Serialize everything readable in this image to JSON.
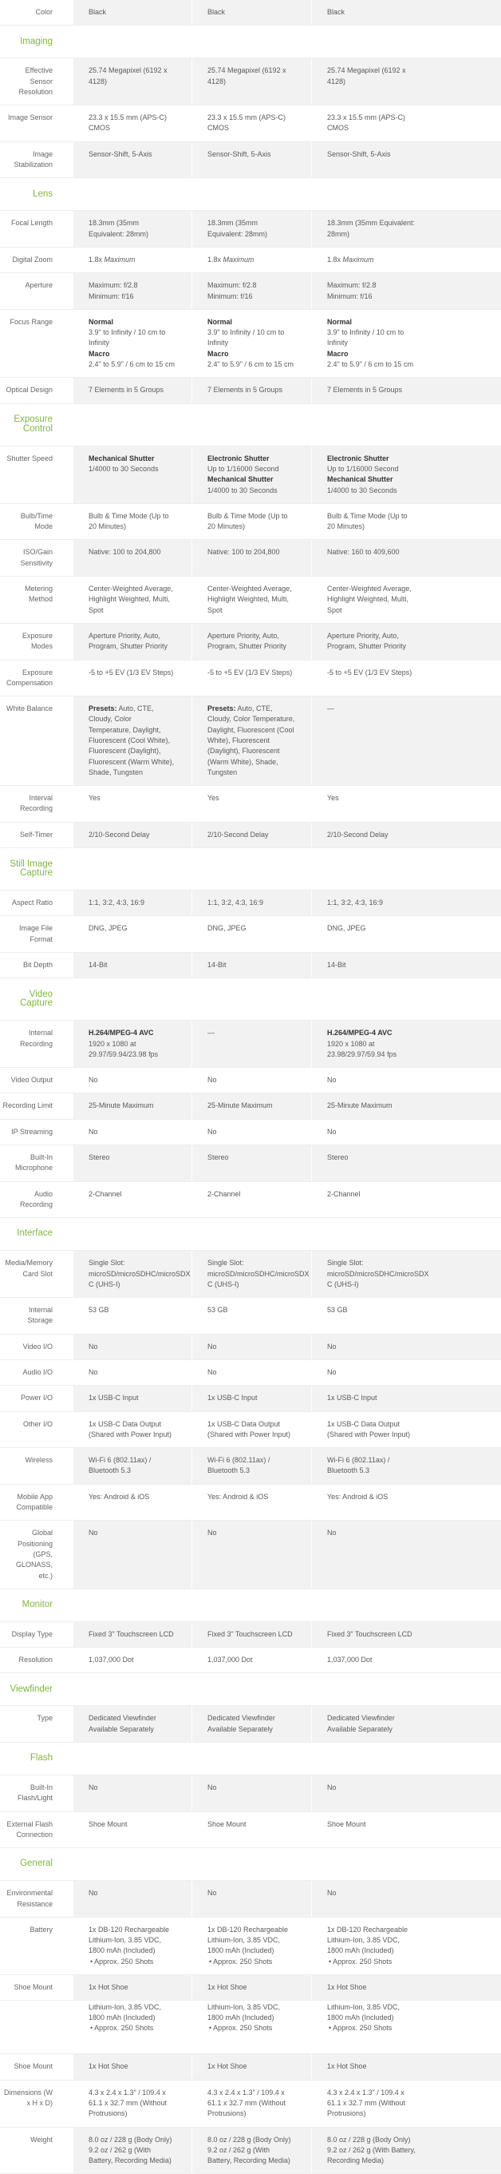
{
  "colors": {
    "accent": "#80b640",
    "shade": "#f2f2f2"
  },
  "sections": [
    {
      "title": "",
      "rows": [
        {
          "label": "Color",
          "cells": [
            [
              "Black"
            ],
            [
              "Black"
            ],
            [
              "Black"
            ]
          ]
        }
      ]
    },
    {
      "title": "Imaging",
      "rows": [
        {
          "label": "Effective Sensor Resolution",
          "cells": [
            [
              "25.74 Megapixel (6192 x 4128)"
            ],
            [
              "25.74 Megapixel (6192 x 4128)"
            ],
            [
              "25.74 Megapixel (6192 x 4128)"
            ]
          ]
        },
        {
          "label": "Image Sensor",
          "cells": [
            [
              "23.3 x 15.5 mm (APS-C) CMOS"
            ],
            [
              "23.3 x 15.5 mm (APS-C) CMOS"
            ],
            [
              "23.3 x 15.5 mm (APS-C) CMOS"
            ]
          ]
        },
        {
          "label": "Image Stabilization",
          "cells": [
            [
              "Sensor-Shift, 5-Axis"
            ],
            [
              "Sensor-Shift, 5-Axis"
            ],
            [
              "Sensor-Shift, 5-Axis"
            ]
          ]
        }
      ]
    },
    {
      "title": "Lens",
      "rows": [
        {
          "label": "Focal Length",
          "cells": [
            [
              "18.3mm (35mm Equivalent: 28mm)"
            ],
            [
              "18.3mm (35mm Equivalent: 28mm)"
            ],
            [
              "18.3mm (35mm Equivalent: 28mm)"
            ]
          ]
        },
        {
          "label": "Digital Zoom",
          "cells": [
            [
              [
                "1.8x ",
                {
                  "i": "Maximum"
                }
              ]
            ],
            [
              [
                "1.8x ",
                {
                  "i": "Maximum"
                }
              ]
            ],
            [
              [
                "1.8x ",
                {
                  "i": "Maximum"
                }
              ]
            ]
          ]
        },
        {
          "label": "Aperture",
          "cells": [
            [
              "Maximum: f/2.8",
              "Minimum: f/16"
            ],
            [
              "Maximum: f/2.8",
              "Minimum: f/16"
            ],
            [
              "Maximum: f/2.8",
              "Minimum: f/16"
            ]
          ]
        },
        {
          "label": "Focus Range",
          "cells": [
            [
              [
                {
                  "b": "Normal"
                }
              ],
              "3.9\" to Infinity / 10 cm to Infinity",
              [
                {
                  "b": "Macro"
                }
              ],
              "2.4\" to 5.9\" / 6 cm to 15 cm"
            ],
            [
              [
                {
                  "b": "Normal"
                }
              ],
              "3.9\" to Infinity / 10 cm to Infinity",
              [
                {
                  "b": "Macro"
                }
              ],
              "2.4\" to 5.9\" / 6 cm to 15 cm"
            ],
            [
              [
                {
                  "b": "Normal"
                }
              ],
              "3.9\" to Infinity / 10 cm to Infinity",
              [
                {
                  "b": "Macro"
                }
              ],
              "2.4\" to 5.9\" / 6 cm to 15 cm"
            ]
          ]
        },
        {
          "label": "Optical Design",
          "cells": [
            [
              "7 Elements in 5 Groups"
            ],
            [
              "7 Elements in 5 Groups"
            ],
            [
              "7 Elements in 5 Groups"
            ]
          ]
        }
      ]
    },
    {
      "title": "Exposure Control",
      "rows": [
        {
          "label": "Shutter Speed",
          "cells": [
            [
              [
                {
                  "b": "Mechanical Shutter"
                }
              ],
              "1/4000 to 30 Seconds"
            ],
            [
              [
                {
                  "b": "Electronic Shutter"
                }
              ],
              "Up to 1/16000 Second",
              [
                {
                  "b": "Mechanical Shutter"
                }
              ],
              "1/4000 to 30 Seconds"
            ],
            [
              [
                {
                  "b": "Electronic Shutter"
                }
              ],
              "Up to 1/16000 Second",
              [
                {
                  "b": "Mechanical Shutter"
                }
              ],
              "1/4000 to 30 Seconds"
            ]
          ]
        },
        {
          "label": "Bulb/Time Mode",
          "cells": [
            [
              "Bulb & Time Mode (Up to 20 Minutes)"
            ],
            [
              "Bulb & Time Mode (Up to 20 Minutes)"
            ],
            [
              "Bulb & Time Mode (Up to 20 Minutes)"
            ]
          ]
        },
        {
          "label": "ISO/Gain Sensitivity",
          "cells": [
            [
              "Native: 100 to 204,800"
            ],
            [
              "Native: 100 to 204,800"
            ],
            [
              "Native: 160 to 409,600"
            ]
          ]
        },
        {
          "label": "Metering Method",
          "cells": [
            [
              "Center-Weighted Average, Highlight Weighted, Multi, Spot"
            ],
            [
              "Center-Weighted Average, Highlight Weighted, Multi, Spot"
            ],
            [
              "Center-Weighted Average, Highlight Weighted, Multi, Spot"
            ]
          ]
        },
        {
          "label": "Exposure Modes",
          "cells": [
            [
              "Aperture Priority, Auto, Program, Shutter Priority"
            ],
            [
              "Aperture Priority, Auto, Program, Shutter Priority"
            ],
            [
              "Aperture Priority, Auto, Program, Shutter Priority"
            ]
          ]
        },
        {
          "label": "Exposure Compensation",
          "cells": [
            [
              "-5 to +5 EV (1/3 EV Steps)"
            ],
            [
              "-5 to +5 EV (1/3 EV Steps)"
            ],
            [
              "-5 to +5 EV (1/3 EV Steps)"
            ]
          ]
        },
        {
          "label": "White Balance",
          "cells": [
            [
              [
                {
                  "b": "Presets:"
                },
                " Auto, CTE, Cloudy, Color Temperature, Daylight, Fluorescent (Cool White), Fluorescent (Daylight), Fluorescent (Warm White), Shade, Tungsten"
              ]
            ],
            [
              [
                {
                  "b": "Presets:"
                },
                " Auto, CTE, Cloudy, Color Temperature, Daylight, Fluorescent (Cool White), Fluorescent (Daylight), Fluorescent (Warm White), Shade, Tungsten"
              ]
            ],
            [
              "—"
            ]
          ]
        },
        {
          "label": "Interval Recording",
          "cells": [
            [
              "Yes"
            ],
            [
              "Yes"
            ],
            [
              "Yes"
            ]
          ]
        },
        {
          "label": "Self-Timer",
          "cells": [
            [
              "2/10-Second Delay"
            ],
            [
              "2/10-Second Delay"
            ],
            [
              "2/10-Second Delay"
            ]
          ]
        }
      ]
    },
    {
      "title": "Still Image Capture",
      "rows": [
        {
          "label": "Aspect Ratio",
          "cells": [
            [
              "1:1, 3:2, 4:3, 16:9"
            ],
            [
              "1:1, 3:2, 4:3, 16:9"
            ],
            [
              "1:1, 3:2, 4:3, 16:9"
            ]
          ]
        },
        {
          "label": "Image File Format",
          "cells": [
            [
              "DNG, JPEG"
            ],
            [
              "DNG, JPEG"
            ],
            [
              "DNG, JPEG"
            ]
          ]
        },
        {
          "label": "Bit Depth",
          "cells": [
            [
              "14-Bit"
            ],
            [
              "14-Bit"
            ],
            [
              "14-Bit"
            ]
          ]
        }
      ]
    },
    {
      "title": "Video Capture",
      "rows": [
        {
          "label": "Internal Recording",
          "cells": [
            [
              [
                {
                  "b": "H.264/MPEG-4 AVC"
                }
              ],
              "1920 x 1080 at 29.97/59.94/23.98 fps"
            ],
            [
              "—"
            ],
            [
              [
                {
                  "b": "H.264/MPEG-4 AVC"
                }
              ],
              "1920 x 1080 at 23.98/29.97/59.94 fps"
            ]
          ]
        },
        {
          "label": "Video Output",
          "cells": [
            [
              "No"
            ],
            [
              "No"
            ],
            [
              "No"
            ]
          ]
        },
        {
          "label": "Recording Limit",
          "cells": [
            [
              "25-Minute Maximum"
            ],
            [
              "25-Minute Maximum"
            ],
            [
              "25-Minute Maximum"
            ]
          ]
        },
        {
          "label": "IP Streaming",
          "cells": [
            [
              "No"
            ],
            [
              "No"
            ],
            [
              "No"
            ]
          ]
        },
        {
          "label": "Built-In Microphone",
          "cells": [
            [
              "Stereo"
            ],
            [
              "Stereo"
            ],
            [
              "Stereo"
            ]
          ]
        },
        {
          "label": "Audio Recording",
          "cells": [
            [
              "2-Channel"
            ],
            [
              "2-Channel"
            ],
            [
              "2-Channel"
            ]
          ]
        }
      ]
    },
    {
      "title": "Interface",
      "rows": [
        {
          "label": "Media/Memory Card Slot",
          "cells": [
            [
              "Single Slot:",
              "microSD/microSDHC/microSDX",
              "C (UHS-I)"
            ],
            [
              "Single Slot:",
              "microSD/microSDHC/microSDX",
              "C (UHS-I)"
            ],
            [
              "Single Slot:",
              "microSD/microSDHC/microSDX",
              "C (UHS-I)"
            ]
          ]
        },
        {
          "label": "Internal Storage",
          "cells": [
            [
              "53 GB"
            ],
            [
              "53 GB"
            ],
            [
              "53 GB"
            ]
          ]
        },
        {
          "label": "Video I/O",
          "cells": [
            [
              "No"
            ],
            [
              "No"
            ],
            [
              "No"
            ]
          ]
        },
        {
          "label": "Audio I/O",
          "cells": [
            [
              "No"
            ],
            [
              "No"
            ],
            [
              "No"
            ]
          ]
        },
        {
          "label": "Power I/O",
          "cells": [
            [
              "1x USB-C Input"
            ],
            [
              "1x USB-C Input"
            ],
            [
              "1x USB-C Input"
            ]
          ]
        },
        {
          "label": "Other I/O",
          "cells": [
            [
              "1x USB-C Data Output (Shared with Power Input)"
            ],
            [
              "1x USB-C Data Output (Shared with Power Input)"
            ],
            [
              "1x USB-C Data Output (Shared with Power Input)"
            ]
          ]
        },
        {
          "label": "Wireless",
          "cells": [
            [
              "Wi-Fi 6 (802.11ax) / Bluetooth 5.3"
            ],
            [
              "Wi-Fi 6 (802.11ax) / Bluetooth 5.3"
            ],
            [
              "Wi-Fi 6 (802.11ax) / Bluetooth 5.3"
            ]
          ]
        },
        {
          "label": "Mobile App Compatible",
          "cells": [
            [
              "Yes: Android & iOS"
            ],
            [
              "Yes: Android & iOS"
            ],
            [
              "Yes: Android & iOS"
            ]
          ]
        },
        {
          "label": "Global Positioning (GPS, GLONASS, etc.)",
          "cells": [
            [
              "No"
            ],
            [
              "No"
            ],
            [
              "No"
            ]
          ]
        }
      ]
    },
    {
      "title": "Monitor",
      "rows": [
        {
          "label": "Display Type",
          "cells": [
            [
              "Fixed 3\" Touchscreen LCD"
            ],
            [
              "Fixed 3\" Touchscreen LCD"
            ],
            [
              "Fixed 3\" Touchscreen LCD"
            ]
          ]
        },
        {
          "label": "Resolution",
          "cells": [
            [
              "1,037,000 Dot"
            ],
            [
              "1,037,000 Dot"
            ],
            [
              "1,037,000 Dot"
            ]
          ]
        }
      ]
    },
    {
      "title": "Viewfinder",
      "rows": [
        {
          "label": "Type",
          "cells": [
            [
              "Dedicated Viewfinder Available Separately"
            ],
            [
              "Dedicated Viewfinder Available Separately"
            ],
            [
              "Dedicated Viewfinder Available Separately"
            ]
          ]
        }
      ]
    },
    {
      "title": "Flash",
      "rows": [
        {
          "label": "Built-In Flash/Light",
          "cells": [
            [
              "No"
            ],
            [
              "No"
            ],
            [
              "No"
            ]
          ]
        },
        {
          "label": "External Flash Connection",
          "cells": [
            [
              "Shoe Mount"
            ],
            [
              "Shoe Mount"
            ],
            [
              "Shoe Mount"
            ]
          ]
        }
      ]
    },
    {
      "title": "General",
      "rows": [
        {
          "label": "Environmental Resistance",
          "cells": [
            [
              "No"
            ],
            [
              "No"
            ],
            [
              "No"
            ]
          ]
        },
        {
          "label": "Battery",
          "cells": [
            [
              "1x DB-120 Rechargeable Lithium-Ion, 3.85 VDC, 1800 mAh (Included)",
              "• Approx. 250 Shots"
            ],
            [
              "1x DB-120 Rechargeable Lithium-Ion, 3.85 VDC, 1800 mAh (Included)",
              "• Approx. 250 Shots"
            ],
            [
              "1x DB-120 Rechargeable Lithium-Ion, 3.85 VDC, 1800 mAh (Included)",
              "• Approx. 250 Shots"
            ]
          ]
        },
        {
          "label": "Shoe Mount",
          "cells": [
            [
              "1x Hot Shoe"
            ],
            [
              "1x Hot Shoe"
            ],
            [
              "1x Hot Shoe"
            ]
          ]
        },
        {
          "label": "Battery",
          "cells": [
            [
              "1x DB-120 Rechargeable Lithium-Ion, 3.85 VDC, 1800 mAh (Included)",
              "• Approx. 250 Shots"
            ],
            [
              "1x DB-120 Rechargeable Lithium-Ion, 3.85 VDC, 1800 mAh (Included)",
              "• Approx. 250 Shots"
            ],
            [
              "1x DB-120 Rechargeable Lithium-Ion, 3.85 VDC, 1800 mAh (Included)",
              "• Approx. 250 Shots"
            ]
          ]
        },
        {
          "label": "Shoe Mount",
          "cells": [
            [
              "1x Hot Shoe"
            ],
            [
              "1x Hot Shoe"
            ],
            [
              "1x Hot Shoe"
            ]
          ]
        },
        {
          "label": "Dimensions (W x H x D)",
          "cells": [
            [
              "4.3 x 2.4 x 1.3\" / 109.4 x 61.1 x 32.7 mm (Without Protrusions)"
            ],
            [
              "4.3 x 2.4 x 1.3\" / 109.4 x 61.1 x 32.7 mm (Without Protrusions)"
            ],
            [
              "4.3 x 2.4 x 1.3\" / 109.4 x 61.1 x 32.7 mm (Without Protrusions)"
            ]
          ]
        },
        {
          "label": "Weight",
          "cells": [
            [
              "8.0 oz / 228 g (Body Only)",
              "9.2 oz / 262 g (With Battery, Recording Media)"
            ],
            [
              "8.0 oz / 228 g (Body Only)",
              "9.2 oz / 262 g (With Battery, Recording Media)"
            ],
            [
              "8.0 oz / 228 g (Body Only)",
              "9.2 oz / 262 g (With Battery, Recording Media)"
            ]
          ]
        }
      ]
    }
  ]
}
